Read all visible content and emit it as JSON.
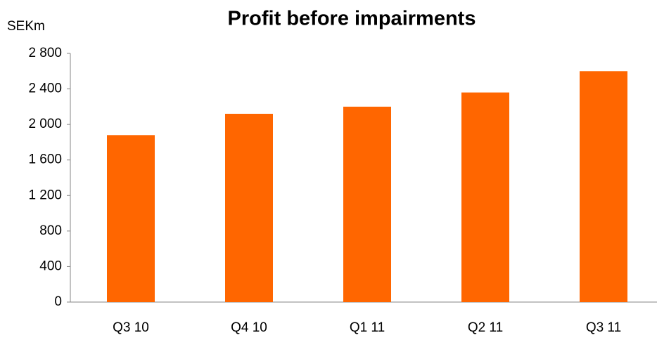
{
  "chart_data": {
    "type": "bar",
    "title": "Profit before impairments",
    "y_label": "SEKm",
    "categories": [
      "Q3 10",
      "Q4 10",
      "Q1 11",
      "Q2 11",
      "Q3 11"
    ],
    "values": [
      1880,
      2120,
      2200,
      2360,
      2600
    ],
    "color": "#ff6600",
    "ylim": [
      0,
      2800
    ],
    "yticks": [
      0,
      400,
      800,
      {
        "value": 1200,
        "label": "1 200"
      },
      {
        "value": 1600,
        "label": "1 600"
      },
      {
        "value": 2000,
        "label": "2 000"
      },
      {
        "value": 2400,
        "label": "2 400"
      },
      {
        "value": 2800,
        "label": "2 800"
      }
    ],
    "grid": false
  }
}
